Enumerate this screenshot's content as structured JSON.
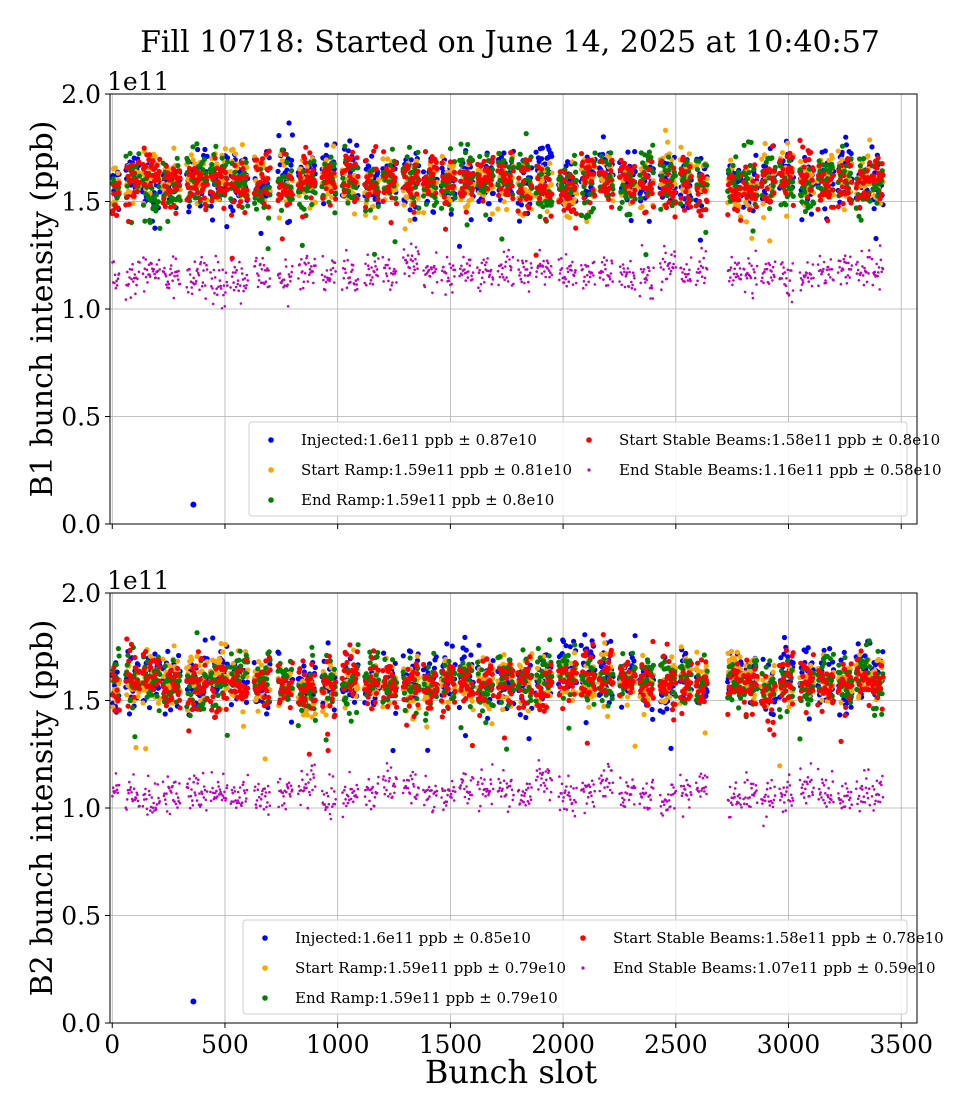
{
  "figure": {
    "title": "Fill 10718: Started on June 14, 2025 at 10:40:57",
    "xlabel": "Bunch slot"
  },
  "chart_data": [
    {
      "type": "scatter",
      "id": "b1",
      "ylabel": "B1 bunch intensity (ppb)",
      "offset_label": "1e11",
      "show_xticklabels": false,
      "xlim": [
        -10,
        3570
      ],
      "ylim": [
        0.0,
        2.0
      ],
      "xticks": [
        0,
        500,
        1000,
        1500,
        2000,
        2500,
        3000,
        3500
      ],
      "xtick_labels": [
        "0",
        "500",
        "1000",
        "1500",
        "2000",
        "2500",
        "3000",
        "3500"
      ],
      "yticks": [
        0.0,
        0.5,
        1.0,
        1.5,
        2.0
      ],
      "ytick_labels": [
        "0.0",
        "0.5",
        "1.0",
        "1.5",
        "2.0"
      ],
      "grid": true,
      "legend_position": "lower-right",
      "trains": [
        [
          0,
          30
        ],
        [
          60,
          120
        ],
        [
          135,
          210
        ],
        [
          225,
          300
        ],
        [
          330,
          420
        ],
        [
          435,
          510
        ],
        [
          525,
          600
        ],
        [
          630,
          700
        ],
        [
          735,
          800
        ],
        [
          825,
          900
        ],
        [
          930,
          990
        ],
        [
          1020,
          1090
        ],
        [
          1120,
          1180
        ],
        [
          1200,
          1260
        ],
        [
          1290,
          1360
        ],
        [
          1380,
          1440
        ],
        [
          1460,
          1520
        ],
        [
          1540,
          1600
        ],
        [
          1620,
          1690
        ],
        [
          1710,
          1780
        ],
        [
          1800,
          1860
        ],
        [
          1880,
          1950
        ],
        [
          1980,
          2060
        ],
        [
          2080,
          2140
        ],
        [
          2160,
          2220
        ],
        [
          2250,
          2320
        ],
        [
          2340,
          2400
        ],
        [
          2430,
          2500
        ],
        [
          2520,
          2570
        ],
        [
          2590,
          2640
        ],
        [
          2730,
          2790
        ],
        [
          2800,
          2860
        ],
        [
          2880,
          2940
        ],
        [
          2960,
          3020
        ],
        [
          3050,
          3110
        ],
        [
          3130,
          3200
        ],
        [
          3220,
          3280
        ],
        [
          3300,
          3360
        ],
        [
          3370,
          3420
        ]
      ],
      "outliers": [
        {
          "x": 360,
          "y": 0.09
        }
      ],
      "series": [
        {
          "name": "Injected:1.6e11 ppb ± 0.87e10",
          "color": "#0000ff",
          "mean": 1.6,
          "std": 0.087
        },
        {
          "name": "Start Ramp:1.59e11 ppb ± 0.81e10",
          "color": "#ffa500",
          "mean": 1.59,
          "std": 0.081
        },
        {
          "name": "End Ramp:1.59e11 ppb ± 0.8e10",
          "color": "#008000",
          "mean": 1.59,
          "std": 0.08
        },
        {
          "name": "Start Stable Beams:1.58e11 ppb ± 0.8e10",
          "color": "#ff0000",
          "mean": 1.58,
          "std": 0.08
        },
        {
          "name": "End Stable Beams:1.16e11 ppb ± 0.58e10",
          "color": "#c000c0",
          "mean": 1.16,
          "std": 0.058
        }
      ]
    },
    {
      "type": "scatter",
      "id": "b2",
      "ylabel": "B2 bunch intensity (ppb)",
      "offset_label": "1e11",
      "show_xticklabels": true,
      "xlim": [
        -10,
        3570
      ],
      "ylim": [
        0.0,
        2.0
      ],
      "xticks": [
        0,
        500,
        1000,
        1500,
        2000,
        2500,
        3000,
        3500
      ],
      "xtick_labels": [
        "0",
        "500",
        "1000",
        "1500",
        "2000",
        "2500",
        "3000",
        "3500"
      ],
      "yticks": [
        0.0,
        0.5,
        1.0,
        1.5,
        2.0
      ],
      "ytick_labels": [
        "0.0",
        "0.5",
        "1.0",
        "1.5",
        "2.0"
      ],
      "grid": true,
      "legend_position": "lower-right",
      "trains": [
        [
          0,
          30
        ],
        [
          60,
          120
        ],
        [
          135,
          210
        ],
        [
          225,
          300
        ],
        [
          330,
          420
        ],
        [
          435,
          510
        ],
        [
          525,
          600
        ],
        [
          630,
          700
        ],
        [
          735,
          800
        ],
        [
          825,
          900
        ],
        [
          930,
          990
        ],
        [
          1020,
          1090
        ],
        [
          1120,
          1180
        ],
        [
          1200,
          1260
        ],
        [
          1290,
          1360
        ],
        [
          1380,
          1440
        ],
        [
          1460,
          1520
        ],
        [
          1540,
          1600
        ],
        [
          1620,
          1690
        ],
        [
          1710,
          1780
        ],
        [
          1800,
          1860
        ],
        [
          1880,
          1950
        ],
        [
          1980,
          2060
        ],
        [
          2080,
          2140
        ],
        [
          2160,
          2220
        ],
        [
          2250,
          2320
        ],
        [
          2340,
          2400
        ],
        [
          2430,
          2500
        ],
        [
          2520,
          2570
        ],
        [
          2590,
          2640
        ],
        [
          2730,
          2790
        ],
        [
          2800,
          2860
        ],
        [
          2880,
          2940
        ],
        [
          2960,
          3020
        ],
        [
          3050,
          3110
        ],
        [
          3130,
          3200
        ],
        [
          3220,
          3280
        ],
        [
          3300,
          3360
        ],
        [
          3370,
          3420
        ]
      ],
      "outliers": [
        {
          "x": 360,
          "y": 0.1
        }
      ],
      "series": [
        {
          "name": "Injected:1.6e11 ppb ± 0.85e10",
          "color": "#0000ff",
          "mean": 1.6,
          "std": 0.085
        },
        {
          "name": "Start Ramp:1.59e11 ppb ± 0.79e10",
          "color": "#ffa500",
          "mean": 1.59,
          "std": 0.079
        },
        {
          "name": "End Ramp:1.59e11 ppb ± 0.79e10",
          "color": "#008000",
          "mean": 1.59,
          "std": 0.079
        },
        {
          "name": "Start Stable Beams:1.58e11 ppb ± 0.78e10",
          "color": "#ff0000",
          "mean": 1.58,
          "std": 0.078
        },
        {
          "name": "End Stable Beams:1.07e11 ppb ± 0.59e10",
          "color": "#c000c0",
          "mean": 1.07,
          "std": 0.059
        }
      ]
    }
  ]
}
